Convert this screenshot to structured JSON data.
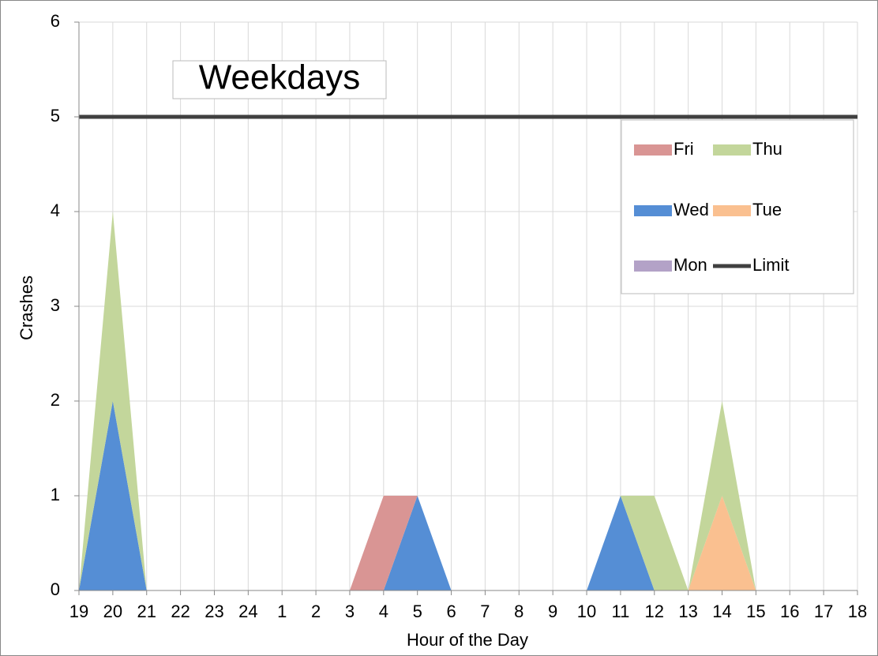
{
  "chart_data": {
    "type": "area",
    "stacked": true,
    "title": "Weekdays",
    "xlabel": "Hour of the Day",
    "ylabel": "Crashes",
    "categories": [
      "19",
      "20",
      "21",
      "22",
      "23",
      "24",
      "1",
      "2",
      "3",
      "4",
      "5",
      "6",
      "7",
      "8",
      "9",
      "10",
      "11",
      "12",
      "13",
      "14",
      "15",
      "16",
      "17",
      "18"
    ],
    "series": [
      {
        "name": "Fri",
        "color": "#d99594",
        "values": [
          0,
          0,
          0,
          0,
          0,
          0,
          0,
          0,
          0,
          1,
          0,
          0,
          0,
          0,
          0,
          0,
          0,
          0,
          0,
          0,
          0,
          0,
          0,
          0
        ]
      },
      {
        "name": "Thu",
        "color": "#c3d69b",
        "values": [
          0,
          2,
          0,
          0,
          0,
          0,
          0,
          0,
          0,
          0,
          0,
          0,
          0,
          0,
          0,
          0,
          0,
          1,
          0,
          1,
          0,
          0,
          0,
          0
        ]
      },
      {
        "name": "Wed",
        "color": "#558ed5",
        "values": [
          0,
          2,
          0,
          0,
          0,
          0,
          0,
          0,
          0,
          0,
          1,
          0,
          0,
          0,
          0,
          0,
          1,
          0,
          0,
          0,
          0,
          0,
          0,
          0
        ]
      },
      {
        "name": "Tue",
        "color": "#fac090",
        "values": [
          0,
          0,
          0,
          0,
          0,
          0,
          0,
          0,
          0,
          0,
          0,
          0,
          0,
          0,
          0,
          0,
          0,
          0,
          0,
          1,
          0,
          0,
          0,
          0
        ]
      },
      {
        "name": "Mon",
        "color": "#b3a2c7",
        "values": [
          0,
          0,
          0,
          0,
          0,
          0,
          0,
          0,
          0,
          0,
          0,
          0,
          0,
          0,
          0,
          0,
          0,
          0,
          0,
          0,
          0,
          0,
          0,
          0
        ]
      },
      {
        "name": "Limit",
        "color": "#404040",
        "type": "line",
        "values": [
          5,
          5,
          5,
          5,
          5,
          5,
          5,
          5,
          5,
          5,
          5,
          5,
          5,
          5,
          5,
          5,
          5,
          5,
          5,
          5,
          5,
          5,
          5,
          5
        ]
      }
    ],
    "ylim": [
      0,
      6
    ],
    "yticks": [
      0,
      1,
      2,
      3,
      4,
      5,
      6
    ],
    "grid": true,
    "legend": "top-right"
  }
}
